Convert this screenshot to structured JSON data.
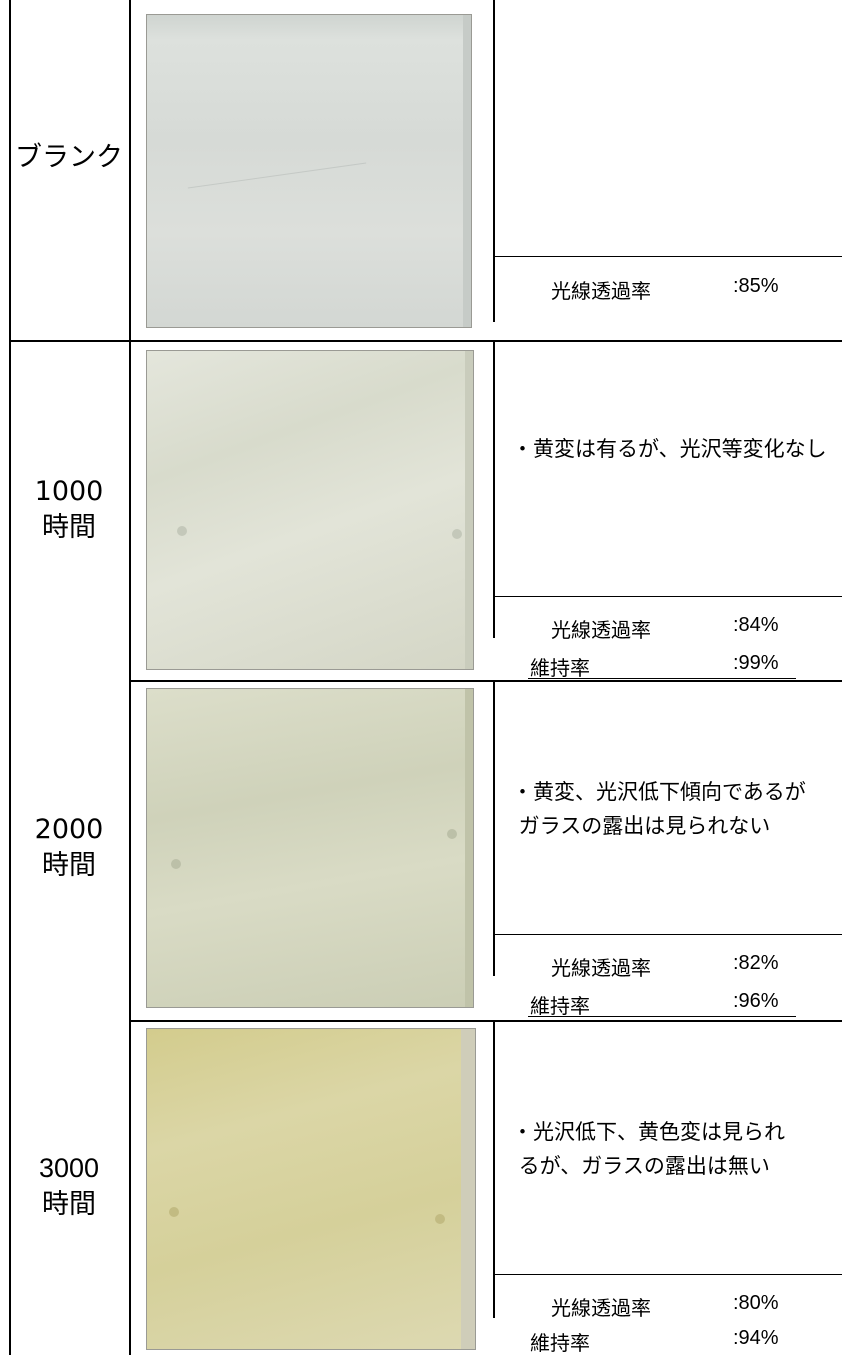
{
  "rows": [
    {
      "label": "ブランク",
      "note": "",
      "transmittance_label": "光線透過率",
      "transmittance": ":85%",
      "retention_label": "",
      "retention": "",
      "color": "#d9ddd8"
    },
    {
      "label": "1000\n時間",
      "note": "・黄変は有るが、光沢等変化なし",
      "transmittance_label": "光線透過率",
      "transmittance": ":84%",
      "retention_label": "維持率",
      "retention": ":99%",
      "color": "#dfe1d2"
    },
    {
      "label": "2000\n時間",
      "note": "・黄変、光沢低下傾向であるが\n ガラスの露出は見られない",
      "transmittance_label": "光線透過率",
      "transmittance": ":82%",
      "retention_label": "維持率",
      "retention": ":96%",
      "color": "#d6d8c0"
    },
    {
      "label": "3000\n時間",
      "note": "・光沢低下、黄色変は見られ\n るが、ガラスの露出は無い",
      "transmittance_label": "光線透過率",
      "transmittance": ":80%",
      "retention_label": "維持率",
      "retention": ":94%",
      "color": "#d6d19a"
    }
  ]
}
